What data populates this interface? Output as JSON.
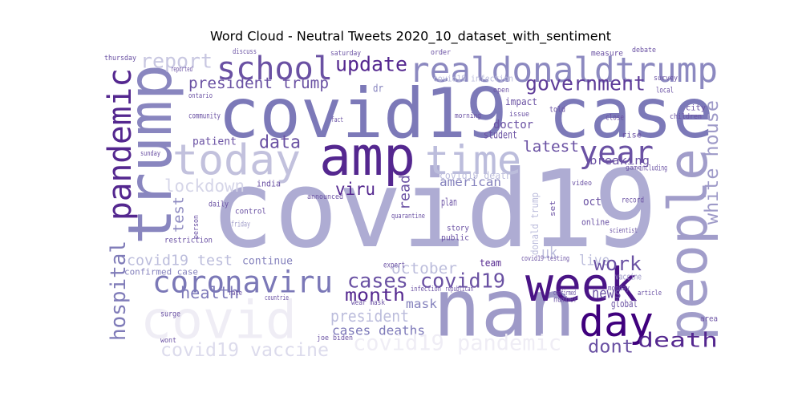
{
  "chart_data": {
    "type": "wordcloud",
    "title": "Word Cloud - Neutral Tweets 2020_10_dataset_with_sentiment",
    "words": [
      {
        "text": "covid19",
        "color": "#aeacd3"
      },
      {
        "text": "covid19 case",
        "color": "#7c79b8"
      },
      {
        "text": "amp",
        "color": "#54278f"
      },
      {
        "text": "nan",
        "color": "#9e9ac8"
      },
      {
        "text": "people",
        "color": "#a19dca"
      },
      {
        "text": "trump",
        "color": "#8986bf"
      },
      {
        "text": "covid",
        "color": "#efedf5"
      },
      {
        "text": "today",
        "color": "#c2c1dd"
      },
      {
        "text": "time",
        "color": "#bcbddc"
      },
      {
        "text": "week",
        "color": "#4a1486"
      },
      {
        "text": "day",
        "color": "#3f007d"
      },
      {
        "text": "realdonaldtrump",
        "color": "#8c89c0"
      },
      {
        "text": "school",
        "color": "#6a51a3"
      },
      {
        "text": "pandemic",
        "color": "#54278f"
      },
      {
        "text": "coronaviru",
        "color": "#7b78b7"
      },
      {
        "text": "hospital",
        "color": "#7f7bb8"
      },
      {
        "text": "year",
        "color": "#6a51a3"
      },
      {
        "text": "government",
        "color": "#5e3c99"
      },
      {
        "text": "update",
        "color": "#54278f"
      },
      {
        "text": "report",
        "color": "#c8c7e1"
      },
      {
        "text": "president trump",
        "color": "#6a51a3"
      },
      {
        "text": "white house",
        "color": "#9e9ac8"
      },
      {
        "text": "data",
        "color": "#6a51a3"
      },
      {
        "text": "viru",
        "color": "#54278f"
      },
      {
        "text": "lockdown",
        "color": "#d5d5e8"
      },
      {
        "text": "test",
        "color": "#8c89c0"
      },
      {
        "text": "india",
        "color": "#6a51a3"
      },
      {
        "text": "latest",
        "color": "#6a51a3"
      },
      {
        "text": "breaking",
        "color": "#6a51a3"
      },
      {
        "text": "american",
        "color": "#8582bd"
      },
      {
        "text": "read",
        "color": "#6a51a3"
      },
      {
        "text": "uk",
        "color": "#bcbddc"
      },
      {
        "text": "live",
        "color": "#bcbddc"
      },
      {
        "text": "work",
        "color": "#6a51a3"
      },
      {
        "text": "news",
        "color": "#6a51a3"
      },
      {
        "text": "death",
        "color": "#54278f"
      },
      {
        "text": "dont",
        "color": "#6a51a3"
      },
      {
        "text": "health",
        "color": "#7d79b9"
      },
      {
        "text": "cases covid19",
        "color": "#6a51a3"
      },
      {
        "text": "month",
        "color": "#54278f"
      },
      {
        "text": "october",
        "color": "#bcbddc"
      },
      {
        "text": "mask",
        "color": "#8582bd"
      },
      {
        "text": "president",
        "color": "#bcbddc"
      },
      {
        "text": "cases deaths",
        "color": "#7d79b9"
      },
      {
        "text": "covid19 pandemic",
        "color": "#efedf5"
      },
      {
        "text": "covid19 vaccine",
        "color": "#dcdbec"
      },
      {
        "text": "covid19 test",
        "color": "#bcbddc"
      },
      {
        "text": "continue",
        "color": "#8582bd"
      },
      {
        "text": "confirmed case",
        "color": "#8582bd"
      },
      {
        "text": "restriction",
        "color": "#6a51a3"
      },
      {
        "text": "doctor",
        "color": "#6a51a3"
      },
      {
        "text": "student",
        "color": "#6a51a3"
      },
      {
        "text": "impact",
        "color": "#6a51a3"
      },
      {
        "text": "patient",
        "color": "#6a51a3"
      },
      {
        "text": "community",
        "color": "#6a51a3"
      },
      {
        "text": "plan",
        "color": "#6a51a3"
      },
      {
        "text": "team",
        "color": "#54278f"
      },
      {
        "text": "global",
        "color": "#6a51a3"
      },
      {
        "text": "oct",
        "color": "#6a51a3"
      },
      {
        "text": "vaccine",
        "color": "#9e9ac8"
      },
      {
        "text": "expert",
        "color": "#6a51a3"
      },
      {
        "text": "quarantine",
        "color": "#6a51a3"
      },
      {
        "text": "daily",
        "color": "#6a51a3"
      },
      {
        "text": "control",
        "color": "#6a51a3"
      },
      {
        "text": "friday",
        "color": "#9e9ac8"
      },
      {
        "text": "online",
        "color": "#6a51a3"
      },
      {
        "text": "record",
        "color": "#6a51a3"
      },
      {
        "text": "including",
        "color": "#6a51a3"
      },
      {
        "text": "local",
        "color": "#6a51a3"
      },
      {
        "text": "close",
        "color": "#6a51a3"
      },
      {
        "text": "told",
        "color": "#6a51a3"
      },
      {
        "text": "rise",
        "color": "#6a51a3"
      },
      {
        "text": "city",
        "color": "#6a51a3"
      },
      {
        "text": "children",
        "color": "#6a51a3"
      },
      {
        "text": "dr",
        "color": "#8582bd"
      },
      {
        "text": "thursday",
        "color": "#6a51a3"
      },
      {
        "text": "reported",
        "color": "#6a51a3"
      },
      {
        "text": "ontario",
        "color": "#6a51a3"
      },
      {
        "text": "fact",
        "color": "#6a51a3"
      },
      {
        "text": "morning",
        "color": "#6a51a3"
      },
      {
        "text": "number",
        "color": "#6a51a3"
      },
      {
        "text": "confirmed",
        "color": "#6a51a3"
      },
      {
        "text": "monday",
        "color": "#6a51a3"
      },
      {
        "text": "article",
        "color": "#6a51a3"
      },
      {
        "text": "area",
        "color": "#6a51a3"
      },
      {
        "text": "public",
        "color": "#6a51a3"
      },
      {
        "text": "story",
        "color": "#6a51a3"
      },
      {
        "text": "joe biden",
        "color": "#6a51a3"
      },
      {
        "text": "republican",
        "color": "#6a51a3"
      },
      {
        "text": "infection",
        "color": "#6a51a3"
      },
      {
        "text": "wear mask",
        "color": "#6a51a3"
      },
      {
        "text": "surge",
        "color": "#6a51a3"
      },
      {
        "text": "rate",
        "color": "#6a51a3"
      },
      {
        "text": "countrie",
        "color": "#6a51a3"
      },
      {
        "text": "wont",
        "color": "#6a51a3"
      },
      {
        "text": "covid19 testing",
        "color": "#6a51a3"
      },
      {
        "text": "scientist",
        "color": "#6a51a3"
      },
      {
        "text": "sunday",
        "color": "#6a51a3"
      },
      {
        "text": "discuss",
        "color": "#6a51a3"
      },
      {
        "text": "saturday",
        "color": "#6a51a3"
      },
      {
        "text": "order",
        "color": "#6a51a3"
      },
      {
        "text": "measure",
        "color": "#6a51a3"
      },
      {
        "text": "debate",
        "color": "#6a51a3"
      },
      {
        "text": "survey",
        "color": "#6a51a3"
      },
      {
        "text": "covid19 infection",
        "color": "#bcbddc"
      },
      {
        "text": "open",
        "color": "#6a51a3"
      },
      {
        "text": "issue",
        "color": "#6a51a3"
      },
      {
        "text": "video",
        "color": "#6a51a3"
      },
      {
        "text": "game",
        "color": "#6a51a3"
      },
      {
        "text": "announced",
        "color": "#6a51a3"
      },
      {
        "text": "donald trump",
        "color": "#bcbddc"
      },
      {
        "text": "covid19 death",
        "color": "#bcbddc"
      },
      {
        "text": "set",
        "color": "#6a51a3"
      },
      {
        "text": "person",
        "color": "#6a51a3"
      }
    ]
  }
}
